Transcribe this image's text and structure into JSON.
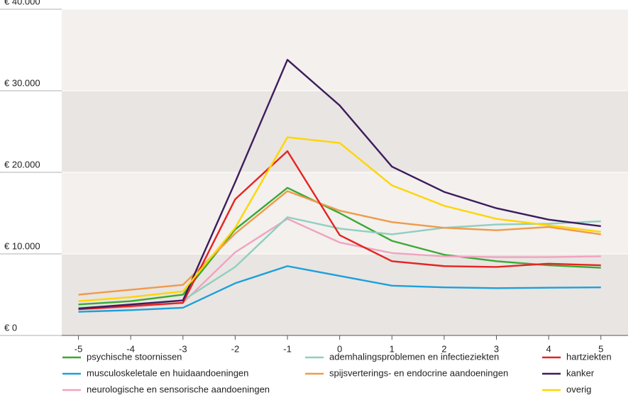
{
  "chart_data": {
    "type": "line",
    "x": [
      -5,
      -4,
      -3,
      -2,
      -1,
      0,
      1,
      2,
      3,
      4,
      5
    ],
    "xlim": [
      -5.32,
      5.52
    ],
    "xticks": [
      -5,
      -4,
      -3,
      -2,
      -1,
      0,
      1,
      2,
      3,
      4,
      5
    ],
    "ylim": [
      0,
      40000
    ],
    "yticks": [
      {
        "value": 0,
        "label": "€ 0"
      },
      {
        "value": 10000,
        "label": "€ 10.000"
      },
      {
        "value": 20000,
        "label": "€ 20.000"
      },
      {
        "value": 30000,
        "label": "€ 30.000"
      },
      {
        "value": 40000,
        "label": "€ 40.000"
      }
    ],
    "grid": true,
    "series": [
      {
        "name": "psychische stoornissen",
        "color": "#3aa935",
        "values": [
          3800,
          4200,
          5000,
          13000,
          18100,
          15000,
          11600,
          9900,
          9100,
          8600,
          8300
        ]
      },
      {
        "name": "musculoskeletale en huidaandoeningen",
        "color": "#1ba0dc",
        "values": [
          2900,
          3100,
          3400,
          6400,
          8500,
          7300,
          6100,
          5900,
          5800,
          5850,
          5900
        ]
      },
      {
        "name": "neurologische en sensorische aandoeningen",
        "color": "#f0a3c0",
        "values": [
          3200,
          3500,
          4000,
          10200,
          14300,
          11400,
          10100,
          9700,
          9600,
          9600,
          9700
        ]
      },
      {
        "name": "ademhalingsproblemen en infectieziekten",
        "color": "#8fcfbf",
        "values": [
          3400,
          3700,
          4300,
          8400,
          14500,
          13100,
          12400,
          13200,
          13600,
          13700,
          14000
        ]
      },
      {
        "name": "spijsverterings- en endocrine aandoeningen",
        "color": "#f09a4a",
        "values": [
          5000,
          5600,
          6200,
          12500,
          17700,
          15300,
          13900,
          13200,
          12900,
          13300,
          12400
        ]
      },
      {
        "name": "hartziekten",
        "color": "#e52421",
        "values": [
          3200,
          3600,
          4000,
          16700,
          22600,
          12300,
          9100,
          8500,
          8400,
          8800,
          8600
        ]
      },
      {
        "name": "kanker",
        "color": "#3c1c5c",
        "values": [
          3300,
          3800,
          4300,
          18800,
          33800,
          28200,
          20700,
          17600,
          15600,
          14200,
          13400
        ]
      },
      {
        "name": "overig",
        "color": "#ffd500",
        "values": [
          4200,
          4700,
          5400,
          13200,
          24300,
          23600,
          18400,
          15900,
          14300,
          13500,
          12700
        ]
      }
    ]
  }
}
